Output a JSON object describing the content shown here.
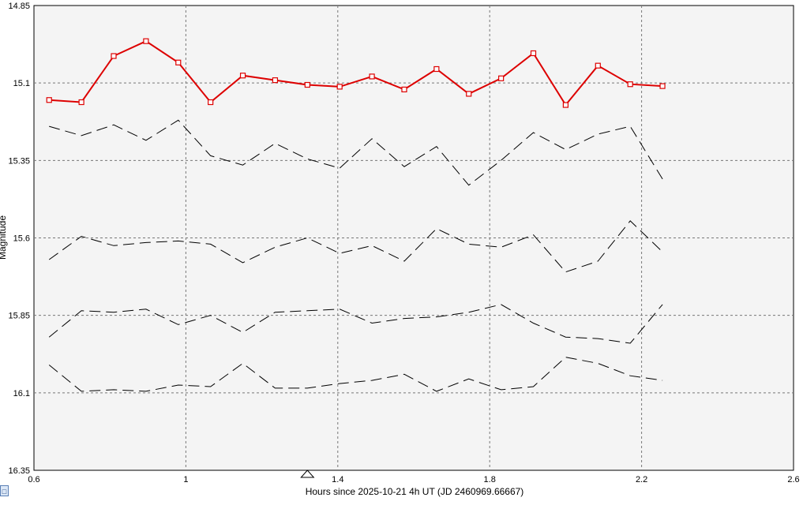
{
  "chart_data": {
    "type": "line",
    "title": "",
    "xlabel": "Hours since 2025-10-21 4h UT (JD 2460969.66667)",
    "ylabel": "Magnitude",
    "xlim": [
      0.6,
      2.6
    ],
    "ylim": [
      14.85,
      16.35
    ],
    "y_inverted": true,
    "grid": true,
    "xticks": [
      "0.6",
      "1",
      "1.4",
      "1.8",
      "2.2",
      "2.6"
    ],
    "yticks": [
      "14.85",
      "15.1",
      "15.35",
      "15.6",
      "15.85",
      "16.1",
      "16.35"
    ],
    "x": [
      0.64,
      0.725,
      0.81,
      0.895,
      0.98,
      1.065,
      1.15,
      1.235,
      1.32,
      1.405,
      1.49,
      1.575,
      1.66,
      1.745,
      1.83,
      1.915,
      2.0,
      2.085,
      2.17,
      2.255
    ],
    "marker_x": 1.32,
    "series": [
      {
        "name": "",
        "color": "#dd0000",
        "style": "solid-markers",
        "values": [
          15.155,
          15.162,
          15.013,
          14.965,
          15.034,
          15.162,
          15.076,
          15.091,
          15.106,
          15.112,
          15.079,
          15.121,
          15.055,
          15.135,
          15.085,
          15.004,
          15.171,
          15.044,
          15.104,
          15.11
        ]
      },
      {
        "name": "",
        "color": "#000000",
        "style": "dashed",
        "values": [
          15.24,
          15.27,
          15.235,
          15.285,
          15.22,
          15.335,
          15.365,
          15.295,
          15.345,
          15.375,
          15.28,
          15.37,
          15.305,
          15.43,
          15.35,
          15.26,
          15.315,
          15.265,
          15.24,
          15.41
        ]
      },
      {
        "name": "",
        "color": "#000000",
        "style": "dashed",
        "values": [
          15.67,
          15.595,
          15.625,
          15.615,
          15.61,
          15.62,
          15.68,
          15.63,
          15.6,
          15.65,
          15.625,
          15.675,
          15.57,
          15.62,
          15.63,
          15.59,
          15.71,
          15.675,
          15.545,
          15.645
        ]
      },
      {
        "name": "",
        "color": "#000000",
        "style": "dashed",
        "values": [
          15.92,
          15.835,
          15.84,
          15.83,
          15.88,
          15.85,
          15.905,
          15.84,
          15.835,
          15.83,
          15.875,
          15.86,
          15.855,
          15.84,
          15.815,
          15.875,
          15.92,
          15.925,
          15.94,
          15.815
        ]
      },
      {
        "name": "",
        "color": "#000000",
        "style": "dashed",
        "values": [
          16.01,
          16.095,
          16.09,
          16.095,
          16.075,
          16.08,
          16.005,
          16.085,
          16.085,
          16.07,
          16.06,
          16.04,
          16.095,
          16.055,
          16.09,
          16.08,
          15.985,
          16.005,
          16.045,
          16.06
        ]
      }
    ]
  },
  "ui": {
    "corner_button_label": "□"
  }
}
